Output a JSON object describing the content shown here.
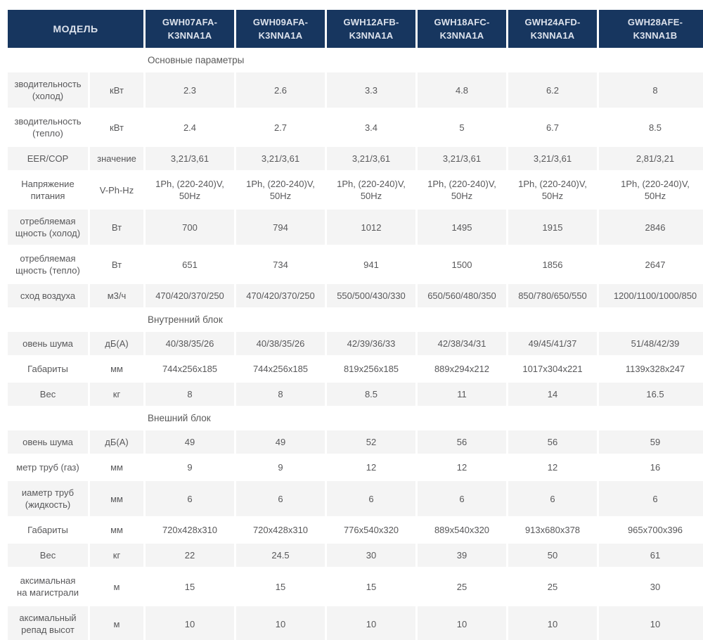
{
  "header": {
    "model_label": "МОДЕЛЬ",
    "models": [
      "GWH07AFA-\nK3NNA1A",
      "GWH09AFA-\nK3NNA1A",
      "GWH12AFB-\nK3NNA1A",
      "GWH18AFC-\nK3NNA1A",
      "GWH24AFD-\nK3NNA1A",
      "GWH28AFE-\nK3NNA1B"
    ]
  },
  "sections": [
    {
      "title": "Основные параметры",
      "rows": [
        {
          "param": "зводительность\n(холод)",
          "unit": "кВт",
          "shaded": true,
          "values": [
            "2.3",
            "2.6",
            "3.3",
            "4.8",
            "6.2",
            "8"
          ]
        },
        {
          "param": "зводительность\n(тепло)",
          "unit": "кВт",
          "shaded": false,
          "values": [
            "2.4",
            "2.7",
            "3.4",
            "5",
            "6.7",
            "8.5"
          ]
        },
        {
          "param": "EER/COP",
          "unit": "значение",
          "shaded": true,
          "values": [
            "3,21/3,61",
            "3,21/3,61",
            "3,21/3,61",
            "3,21/3,61",
            "3,21/3,61",
            "2,81/3,21"
          ]
        },
        {
          "param": "Напряжение\nпитания",
          "unit": "V-Ph-Hz",
          "shaded": false,
          "values": [
            "1Ph, (220-240)V,\n50Hz",
            "1Ph, (220-240)V,\n50Hz",
            "1Ph, (220-240)V,\n50Hz",
            "1Ph, (220-240)V,\n50Hz",
            "1Ph, (220-240)V,\n50Hz",
            "1Ph, (220-240)V,\n50Hz"
          ]
        },
        {
          "param": "отребляемая\nщность (холод)",
          "unit": "Вт",
          "shaded": true,
          "values": [
            "700",
            "794",
            "1012",
            "1495",
            "1915",
            "2846"
          ]
        },
        {
          "param": "отребляемая\nщность (тепло)",
          "unit": "Вт",
          "shaded": false,
          "values": [
            "651",
            "734",
            "941",
            "1500",
            "1856",
            "2647"
          ]
        },
        {
          "param": "сход воздуха",
          "unit": "м3/ч",
          "shaded": true,
          "values": [
            "470/420/370/250",
            "470/420/370/250",
            "550/500/430/330",
            "650/560/480/350",
            "850/780/650/550",
            "1200/1100/1000/850"
          ]
        }
      ]
    },
    {
      "title": "Внутренний блок",
      "rows": [
        {
          "param": "овень шума",
          "unit": "дБ(А)",
          "shaded": true,
          "values": [
            "40/38/35/26",
            "40/38/35/26",
            "42/39/36/33",
            "42/38/34/31",
            "49/45/41/37",
            "51/48/42/39"
          ]
        },
        {
          "param": "Габариты",
          "unit": "мм",
          "shaded": false,
          "values": [
            "744x256x185",
            "744x256x185",
            "819x256x185",
            "889x294x212",
            "1017x304x221",
            "1139x328x247"
          ]
        },
        {
          "param": "Вес",
          "unit": "кг",
          "shaded": true,
          "values": [
            "8",
            "8",
            "8.5",
            "11",
            "14",
            "16.5"
          ]
        }
      ]
    },
    {
      "title": "Внешний блок",
      "rows": [
        {
          "param": "овень шума",
          "unit": "дБ(А)",
          "shaded": true,
          "values": [
            "49",
            "49",
            "52",
            "56",
            "56",
            "59"
          ]
        },
        {
          "param": "метр труб (газ)",
          "unit": "мм",
          "shaded": false,
          "values": [
            "9",
            "9",
            "12",
            "12",
            "12",
            "16"
          ]
        },
        {
          "param": "иаметр труб\n(жидкость)",
          "unit": "мм",
          "shaded": true,
          "values": [
            "6",
            "6",
            "6",
            "6",
            "6",
            "6"
          ]
        },
        {
          "param": "Габариты",
          "unit": "мм",
          "shaded": false,
          "values": [
            "720x428x310",
            "720x428x310",
            "776x540x320",
            "889x540x320",
            "913x680x378",
            "965x700x396"
          ]
        },
        {
          "param": "Вес",
          "unit": "кг",
          "shaded": true,
          "values": [
            "22",
            "24.5",
            "30",
            "39",
            "50",
            "61"
          ]
        },
        {
          "param": "аксимальная\nна магистрали",
          "unit": "м",
          "shaded": false,
          "values": [
            "15",
            "15",
            "15",
            "25",
            "25",
            "30"
          ]
        },
        {
          "param": "аксимальный\nрепад высот",
          "unit": "м",
          "shaded": true,
          "values": [
            "10",
            "10",
            "10",
            "10",
            "10",
            "10"
          ]
        }
      ]
    }
  ],
  "colors": {
    "header_bg": "#17365f",
    "header_text": "#dce2ec",
    "row_shade": "#f4f4f4",
    "body_text": "#58585a"
  }
}
